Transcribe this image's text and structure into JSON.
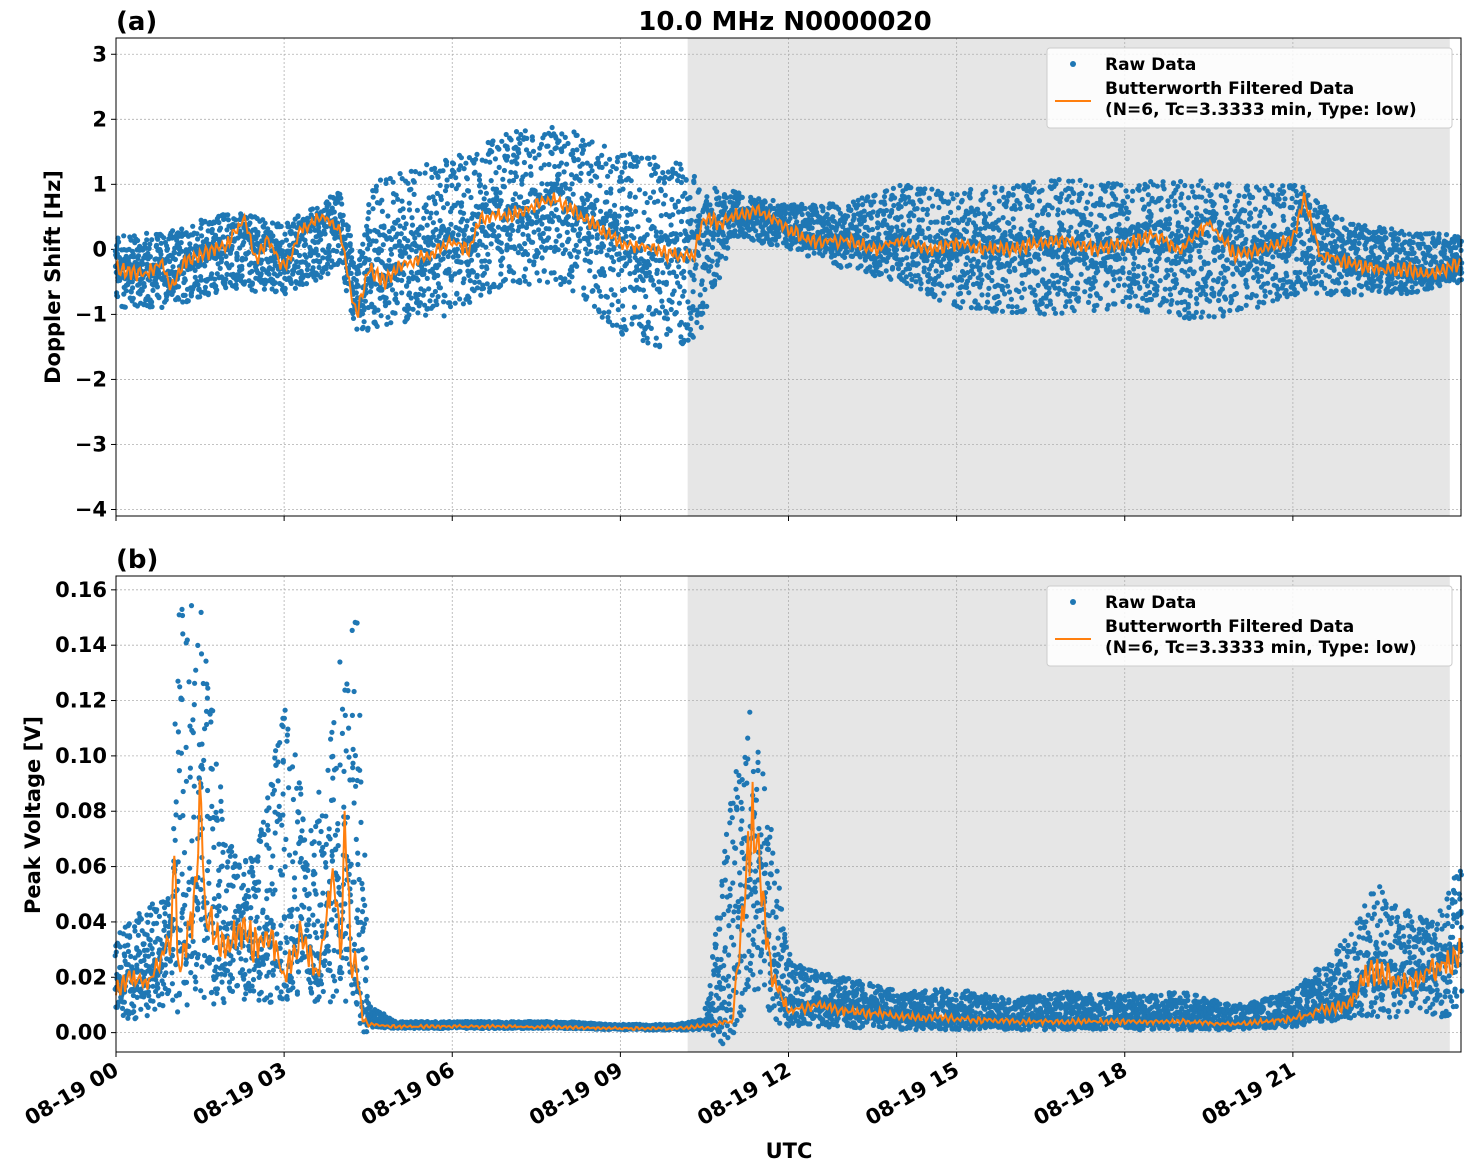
{
  "title": "10.0 MHz N0000020",
  "xlabel": "UTC",
  "colors": {
    "raw": "#1f77b4",
    "filtered": "#ff7f0e",
    "shade": "#e6e6e6",
    "grid": "#b0b0b0"
  },
  "x_ticks": [
    "08-19 00",
    "08-19 03",
    "08-19 06",
    "08-19 09",
    "08-19 12",
    "08-19 15",
    "08-19 18",
    "08-19 21"
  ],
  "legend": {
    "raw": "Raw Data",
    "filtered_line1": "Butterworth Filtered Data",
    "filtered_line2": "(N=6, Tc=3.3333 min, Type: low)"
  },
  "chart_data": [
    {
      "type": "scatter",
      "panel_label": "(a)",
      "ylabel": "Doppler Shift [Hz]",
      "x_unit": "hours UTC on 08-19",
      "xlim": [
        0,
        24
      ],
      "ylim": [
        -4.1,
        3.25
      ],
      "yticks": [
        3,
        2,
        1,
        0,
        -1,
        -2,
        -3,
        -4
      ],
      "ytick_labels": [
        "3",
        "2",
        "1",
        "0",
        "−1",
        "−2",
        "−3",
        "−4"
      ],
      "shaded_x_range": [
        10.2,
        23.8
      ],
      "grid": true,
      "legend_position": "top-right",
      "series": [
        {
          "name": "Butterworth Filtered Data",
          "kind": "line",
          "x": [
            0,
            0.5,
            0.8,
            1,
            1.2,
            1.5,
            2,
            2.3,
            2.5,
            2.7,
            3,
            3.3,
            3.7,
            4,
            4.2,
            4.3,
            4.5,
            4.8,
            5,
            5.5,
            6,
            6.3,
            6.5,
            7,
            7.5,
            7.8,
            8,
            8.5,
            9,
            9.5,
            10,
            10.3,
            10.5,
            10.8,
            11,
            11.5,
            12,
            12.5,
            13,
            13.5,
            14,
            14.5,
            15,
            15.5,
            16,
            16.5,
            17,
            17.5,
            18,
            18.5,
            19,
            19.5,
            20,
            20.5,
            21,
            21.2,
            21.5,
            22,
            22.5,
            23,
            23.5,
            24
          ],
          "y": [
            -0.3,
            -0.4,
            -0.2,
            -0.6,
            -0.2,
            -0.1,
            0.1,
            0.5,
            -0.2,
            0.2,
            -0.3,
            0.3,
            0.5,
            0.3,
            -0.7,
            -1.0,
            -0.3,
            -0.5,
            -0.3,
            -0.1,
            0.1,
            0.0,
            0.5,
            0.5,
            0.7,
            0.8,
            0.7,
            0.4,
            0.1,
            0.0,
            -0.1,
            -0.1,
            0.5,
            0.4,
            0.5,
            0.6,
            0.3,
            0.1,
            0.15,
            0.0,
            0.15,
            0.0,
            0.1,
            0.0,
            0.0,
            0.1,
            0.15,
            0.0,
            0.1,
            0.2,
            0.0,
            0.4,
            -0.1,
            0.0,
            0.15,
            0.8,
            -0.1,
            -0.2,
            -0.3,
            -0.3,
            -0.4,
            -0.2
          ]
        },
        {
          "name": "Raw Data",
          "kind": "scatter_band",
          "x": [
            0,
            1,
            2,
            3,
            4,
            4.3,
            4.6,
            5,
            6,
            7,
            8,
            9,
            10,
            10.5,
            11,
            12,
            13,
            14,
            15,
            16,
            17,
            18,
            19,
            20,
            21,
            22,
            23,
            24
          ],
          "y_low": [
            -0.9,
            -0.9,
            -0.6,
            -0.7,
            -0.3,
            -1.4,
            -1.2,
            -1.2,
            -1.0,
            -0.5,
            -0.6,
            -1.3,
            -1.6,
            -1.2,
            0.2,
            0.0,
            -0.3,
            -0.5,
            -0.9,
            -1.0,
            -1.0,
            -0.9,
            -1.1,
            -1.0,
            -0.7,
            -0.7,
            -0.7,
            -0.5
          ],
          "y_high": [
            0.2,
            0.3,
            0.6,
            0.4,
            0.9,
            -0.2,
            1.0,
            1.2,
            1.4,
            1.8,
            1.9,
            1.5,
            1.4,
            1.0,
            0.9,
            0.7,
            0.7,
            1.0,
            0.9,
            1.0,
            1.1,
            1.0,
            1.1,
            1.0,
            1.0,
            0.4,
            0.3,
            0.2
          ]
        }
      ]
    },
    {
      "type": "scatter",
      "panel_label": "(b)",
      "ylabel": "Peak Voltage [V]",
      "x_unit": "hours UTC on 08-19",
      "xlim": [
        0,
        24
      ],
      "ylim": [
        -0.007,
        0.165
      ],
      "yticks": [
        0.16,
        0.14,
        0.12,
        0.1,
        0.08,
        0.06,
        0.04,
        0.02,
        0.0
      ],
      "ytick_labels": [
        "0.16",
        "0.14",
        "0.12",
        "0.10",
        "0.08",
        "0.06",
        "0.04",
        "0.02",
        "0.00"
      ],
      "shaded_x_range": [
        10.2,
        23.8
      ],
      "grid": true,
      "legend_position": "top-right",
      "series": [
        {
          "name": "Butterworth Filtered Data",
          "kind": "line",
          "x": [
            0,
            0.3,
            0.6,
            1.0,
            1.05,
            1.1,
            1.2,
            1.4,
            1.5,
            1.6,
            1.8,
            2.0,
            2.3,
            2.5,
            2.8,
            3.0,
            3.3,
            3.6,
            3.9,
            4.0,
            4.1,
            4.2,
            4.3,
            4.4,
            4.5,
            5,
            6,
            7,
            8,
            9,
            10,
            10.5,
            11,
            11.2,
            11.35,
            11.5,
            11.7,
            12,
            12.5,
            13,
            13.5,
            14,
            15,
            16,
            17,
            18,
            19,
            20,
            21,
            21.5,
            22,
            22.3,
            22.5,
            23,
            23.5,
            24
          ],
          "y": [
            0.015,
            0.02,
            0.018,
            0.035,
            0.075,
            0.02,
            0.03,
            0.045,
            0.086,
            0.04,
            0.035,
            0.03,
            0.04,
            0.03,
            0.035,
            0.02,
            0.035,
            0.02,
            0.06,
            0.03,
            0.075,
            0.02,
            0.025,
            0.005,
            0.003,
            0.0022,
            0.0022,
            0.0022,
            0.002,
            0.0015,
            0.0015,
            0.0025,
            0.004,
            0.05,
            0.073,
            0.06,
            0.02,
            0.008,
            0.01,
            0.008,
            0.007,
            0.006,
            0.005,
            0.004,
            0.004,
            0.004,
            0.004,
            0.003,
            0.005,
            0.008,
            0.01,
            0.02,
            0.022,
            0.018,
            0.022,
            0.028
          ]
        },
        {
          "name": "Raw Data",
          "kind": "scatter_band",
          "x": [
            0,
            0.5,
            1.0,
            1.1,
            1.5,
            2.0,
            2.5,
            3.0,
            3.5,
            4.0,
            4.3,
            4.5,
            5,
            6,
            7,
            8,
            9,
            10,
            10.5,
            11,
            11.3,
            11.5,
            11.8,
            12,
            12.5,
            13,
            14,
            15,
            16,
            17,
            18,
            19,
            20,
            21,
            22,
            22.5,
            23,
            23.5,
            24
          ],
          "y_low": [
            0.005,
            0.005,
            0.01,
            0.01,
            0.01,
            0.01,
            0.01,
            0.01,
            0.01,
            0.01,
            0.01,
            0.002,
            0.0015,
            0.0015,
            0.0015,
            0.0015,
            0.001,
            0.001,
            0.001,
            0.002,
            0.01,
            0.01,
            0.003,
            0.002,
            0.002,
            0.002,
            0.001,
            0.001,
            0.001,
            0.001,
            0.001,
            0.001,
            0.001,
            0.002,
            0.005,
            0.005,
            0.005,
            0.005,
            0.007
          ],
          "y_high": [
            0.035,
            0.045,
            0.05,
            0.155,
            0.158,
            0.07,
            0.065,
            0.12,
            0.07,
            0.136,
            0.156,
            0.01,
            0.004,
            0.004,
            0.004,
            0.004,
            0.003,
            0.003,
            0.005,
            0.09,
            0.118,
            0.105,
            0.06,
            0.03,
            0.022,
            0.02,
            0.015,
            0.016,
            0.012,
            0.015,
            0.014,
            0.015,
            0.01,
            0.015,
            0.035,
            0.055,
            0.045,
            0.04,
            0.06
          ]
        }
      ]
    }
  ]
}
